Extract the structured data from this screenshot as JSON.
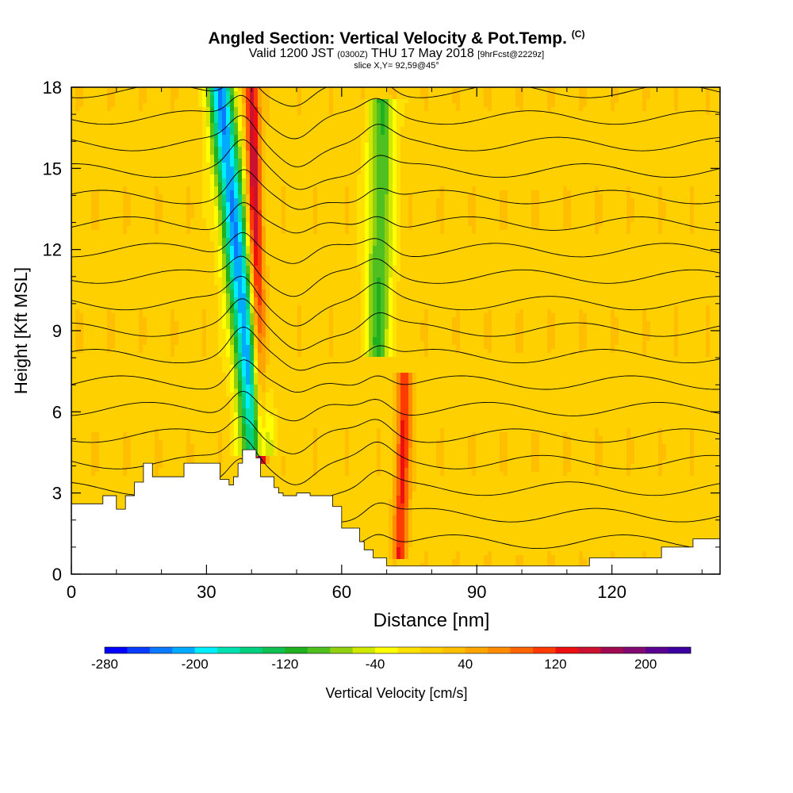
{
  "header": {
    "title": "Angled Section: Vertical Velocity & Pot.Temp.",
    "title_unit": "(C)",
    "subtitle_a": "Valid 1200 JST",
    "subtitle_b": "(0300Z)",
    "subtitle_c": "THU 17 May 2018",
    "subtitle_d": "[9hrFcst@2229z]",
    "slice": "slice X,Y= 92,59@45°"
  },
  "chart_data": {
    "type": "heatmap",
    "title": "Angled Section: Vertical Velocity & Pot.Temp. (C)",
    "xlabel": "Distance [nm]",
    "ylabel": "Height [Kft MSL]",
    "xlim": [
      0,
      144
    ],
    "ylim": [
      0,
      18
    ],
    "x_ticks": [
      0,
      30,
      60,
      90,
      120
    ],
    "y_ticks": [
      0,
      3,
      6,
      9,
      12,
      15,
      18
    ],
    "x_tick_labels": [
      "0",
      "30",
      "60",
      "90",
      "120"
    ],
    "y_tick_labels": [
      "0",
      "3",
      "6",
      "9",
      "12",
      "15",
      "18"
    ],
    "colorbar": {
      "label": "Vertical Velocity [cm/s]",
      "min": -280,
      "max": 240,
      "step": 20,
      "tick_values": [
        -280,
        -200,
        -120,
        -40,
        40,
        120,
        200
      ],
      "tick_labels": [
        "-280",
        "-200",
        "-120",
        "-40",
        "40",
        "120",
        "200"
      ],
      "colors": [
        "#0000ff",
        "#0a3cff",
        "#0a78ff",
        "#00aaff",
        "#00eeff",
        "#00e0b0",
        "#00d080",
        "#10c050",
        "#20b020",
        "#50c020",
        "#90d010",
        "#d0e800",
        "#ffff00",
        "#ffe200",
        "#ffd000",
        "#ffbf00",
        "#ffa500",
        "#ff8c00",
        "#ff6400",
        "#ff3c00",
        "#ee1010",
        "#cc1030",
        "#a00a50",
        "#800a70",
        "#5a0090",
        "#3c00a0"
      ]
    },
    "terrain_profile": {
      "x": [
        0,
        7,
        10,
        12,
        14,
        16,
        18,
        20,
        22,
        25,
        29,
        33,
        34,
        35,
        36,
        37,
        38,
        39,
        40,
        41,
        42,
        43,
        45,
        46,
        47,
        48,
        50,
        53,
        56,
        58,
        60,
        62,
        64,
        65,
        67,
        70,
        75,
        80,
        85,
        90,
        95,
        100,
        105,
        110,
        115,
        120,
        125,
        128,
        131,
        135,
        138,
        144
      ],
      "y": [
        2.6,
        2.9,
        2.4,
        2.9,
        3.4,
        4.1,
        3.6,
        3.6,
        3.6,
        4.1,
        4.1,
        3.5,
        3.5,
        3.3,
        3.6,
        4.1,
        4.6,
        4.6,
        4.6,
        4.3,
        3.6,
        3.6,
        3.2,
        3.0,
        2.9,
        2.9,
        3.0,
        2.9,
        2.9,
        2.5,
        1.7,
        1.7,
        1.2,
        0.9,
        0.6,
        0.3,
        0.3,
        0.3,
        0.3,
        0.3,
        0.3,
        0.3,
        0.3,
        0.3,
        0.6,
        0.6,
        0.6,
        0.6,
        1.0,
        1.0,
        1.3,
        1.3
      ]
    },
    "series": [
      {
        "name": "downdraft",
        "values": [
          {
            "x_low": 41,
            "y_low": 4.8,
            "x_high": 33,
            "y_high": 18,
            "min": -230
          }
        ]
      },
      {
        "name": "updraft",
        "values": [
          {
            "x_low": 42,
            "y_low": 4.6,
            "x_high": 40,
            "y_high": 18,
            "max": 150
          }
        ]
      },
      {
        "name": "downdraft",
        "values": [
          {
            "x_low": 68,
            "y_low": 8.5,
            "x_high": 69,
            "y_high": 17,
            "min": -110
          }
        ]
      },
      {
        "name": "updraft",
        "values": [
          {
            "x_low": 73,
            "y_low": 1.0,
            "x_high": 74,
            "y_high": 7,
            "max": 110
          }
        ]
      }
    ],
    "grid": false,
    "legend": "bottom"
  }
}
